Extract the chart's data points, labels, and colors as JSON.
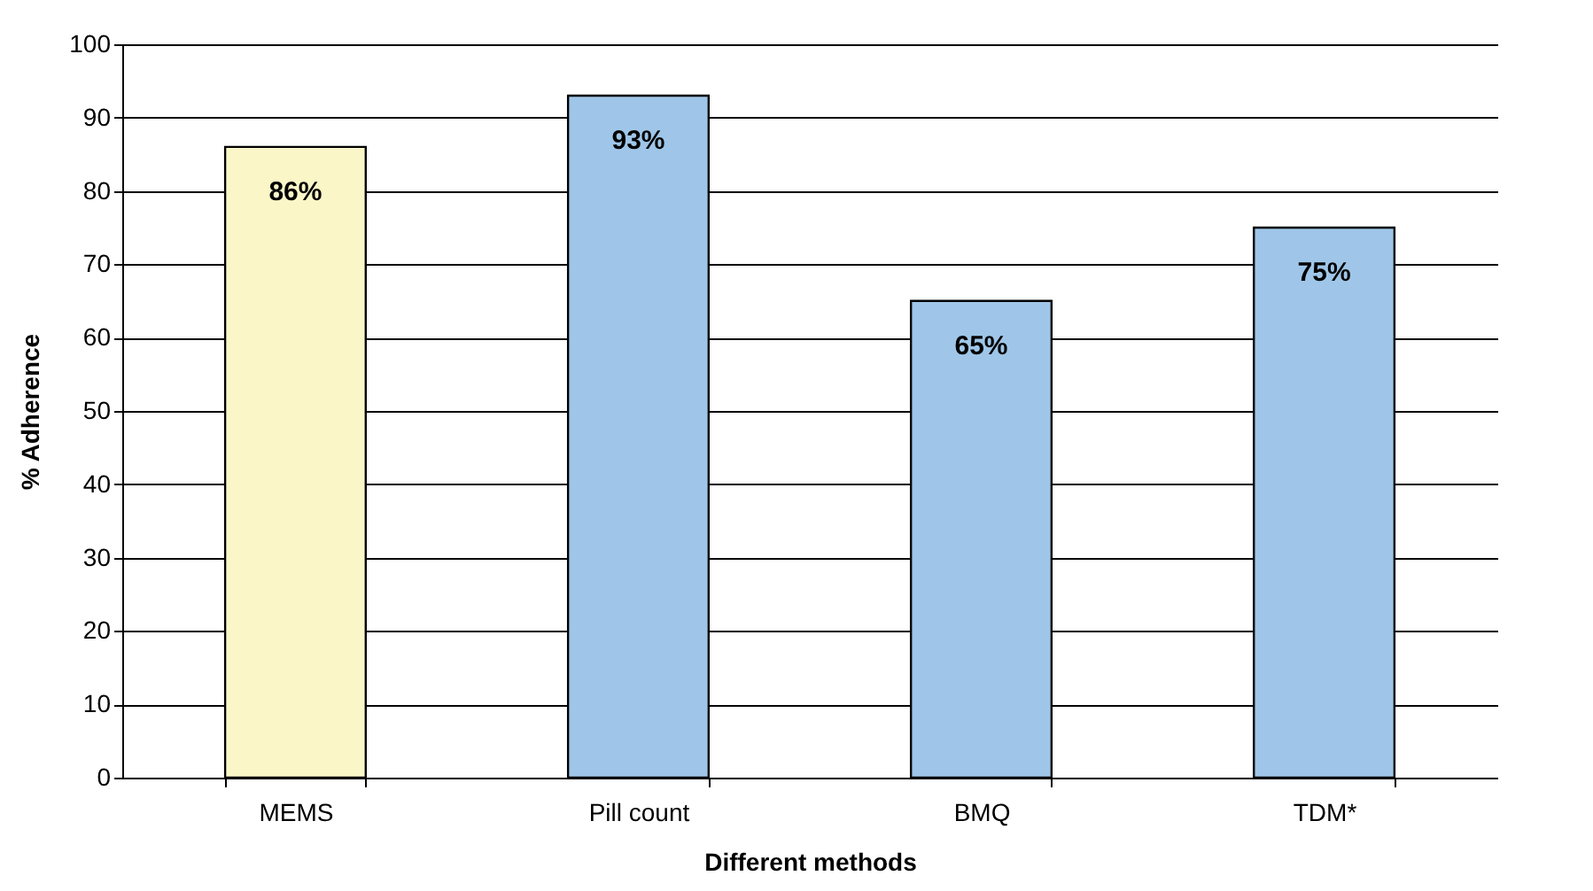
{
  "chart_data": {
    "type": "bar",
    "xlabel": "Different methods",
    "ylabel": "% Adherence",
    "categories": [
      "MEMS",
      "Pill count",
      "BMQ",
      "TDM*"
    ],
    "values": [
      86,
      93,
      65,
      75
    ],
    "colors": [
      "#faf6c8",
      "#9fc6e8",
      "#9fc6e8",
      "#9fc6e8"
    ],
    "value_labels": [
      "86%",
      "93%",
      "65%",
      "75%"
    ],
    "ylim": [
      0,
      100
    ],
    "yticks": [
      0,
      10,
      20,
      30,
      40,
      50,
      60,
      70,
      80,
      90,
      100
    ],
    "grid": "y"
  }
}
